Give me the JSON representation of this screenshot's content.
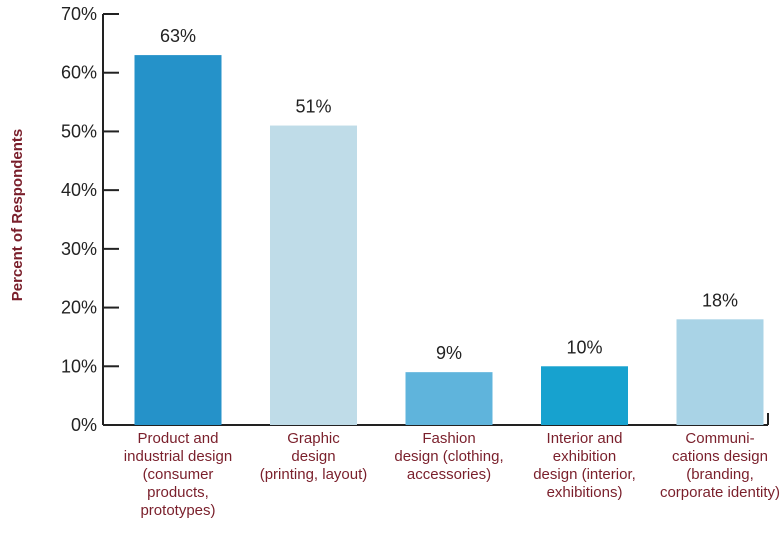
{
  "chart_data": {
    "type": "bar",
    "ylabel": "Percent of Respondents",
    "xlabel": "",
    "ylim": [
      0,
      70
    ],
    "y_ticks": [
      "0%",
      "10%",
      "20%",
      "30%",
      "40%",
      "50%",
      "60%",
      "70%"
    ],
    "y_tick_values": [
      0,
      10,
      20,
      30,
      40,
      50,
      60,
      70
    ],
    "grid": false,
    "categories": [
      "Product and industrial design (consumer products, prototypes)",
      "Graphic design (printing, layout)",
      "Fashion design (clothing, accessories)",
      "Interior and exhibition design (interior, exhibitions)",
      "Communications design (branding, corporate identity)"
    ],
    "category_lines": [
      [
        "Product and",
        "industrial design",
        "(consumer",
        "products,",
        "prototypes)"
      ],
      [
        "Graphic",
        "design",
        "(printing, layout)"
      ],
      [
        "Fashion",
        "design (clothing,",
        "accessories)"
      ],
      [
        "Interior and",
        "exhibition",
        "design (interior,",
        "exhibitions)"
      ],
      [
        "Communi-",
        "cations design",
        "(branding,",
        "corporate identity)"
      ]
    ],
    "values": [
      63,
      51,
      9,
      10,
      18
    ],
    "value_labels": [
      "63%",
      "51%",
      "9%",
      "10%",
      "18%"
    ],
    "colors": [
      "#2592c9",
      "#bfdce8",
      "#5fb4dc",
      "#17a2cf",
      "#a9d3e6"
    ],
    "axis_color": "#222222"
  }
}
